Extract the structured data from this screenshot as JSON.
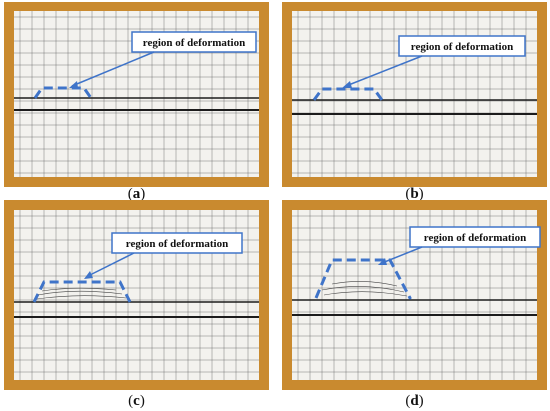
{
  "colors": {
    "frame": "#c98a2f",
    "board": "#f3f2ee",
    "grid": "#5c5c5c",
    "dash": "#3f74c9",
    "line": "#1c1c1c"
  },
  "panels": [
    {
      "id": "a",
      "annotation": "region of deformation",
      "caption_open": "(",
      "caption_letter": "a",
      "caption_close": ")"
    },
    {
      "id": "b",
      "annotation": "region of deformation",
      "caption_open": "(",
      "caption_letter": "b",
      "caption_close": ")"
    },
    {
      "id": "c",
      "annotation": "region of deformation",
      "caption_open": "(",
      "caption_letter": "c",
      "caption_close": ")"
    },
    {
      "id": "d",
      "annotation": "region of deformation",
      "caption_open": "(",
      "caption_letter": "d",
      "caption_close": ")"
    }
  ]
}
